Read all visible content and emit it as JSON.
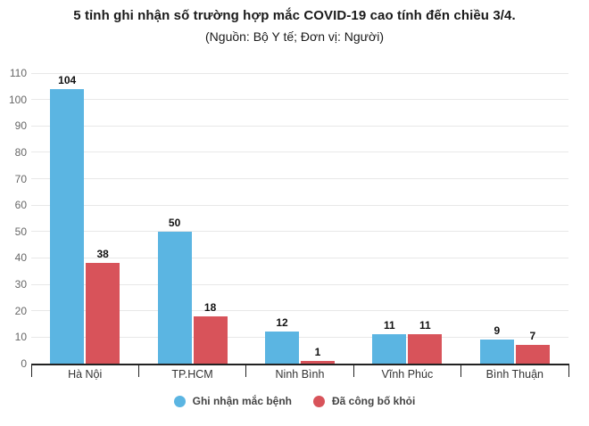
{
  "header": {
    "title": "5 tỉnh ghi nhận số trường hợp mắc COVID-19 cao tính đến chiều 3/4.",
    "subtitle": "(Nguồn: Bộ Y tế; Đơn vị: Người)"
  },
  "chart_data": {
    "type": "bar",
    "title": "5 tỉnh ghi nhận số trường hợp mắc COVID-19 cao tính đến chiều 3/4.",
    "subtitle": "(Nguồn: Bộ Y tế; Đơn vị: Người)",
    "categories": [
      "Hà Nội",
      "TP.HCM",
      "Ninh Bình",
      "Vĩnh Phúc",
      "Bình Thuận"
    ],
    "series": [
      {
        "name": "Ghi nhận mắc bệnh",
        "color": "#5bb5e2",
        "values": [
          104,
          50,
          12,
          11,
          9
        ]
      },
      {
        "name": "Đã công bố khỏi",
        "color": "#d8535a",
        "values": [
          38,
          18,
          1,
          11,
          7
        ]
      }
    ],
    "ylim": [
      0,
      110
    ],
    "ytick_step": 10,
    "ytick_labels": [
      "0",
      "10",
      "20",
      "30",
      "40",
      "50",
      "60",
      "70",
      "80",
      "90",
      "100",
      "110"
    ],
    "grid": true,
    "value_labels": true,
    "legend_position": "bottom",
    "xlabel": "",
    "ylabel": ""
  },
  "colors": {
    "series_blue": "#5bb5e2",
    "series_red": "#d8535a",
    "title_text": "#1a1a1a",
    "axis_text": "#666666",
    "category_text": "#333333",
    "gridline": "#e8e8e8",
    "axis_line": "#222222",
    "legend_text": "#444444",
    "background": "#ffffff"
  }
}
